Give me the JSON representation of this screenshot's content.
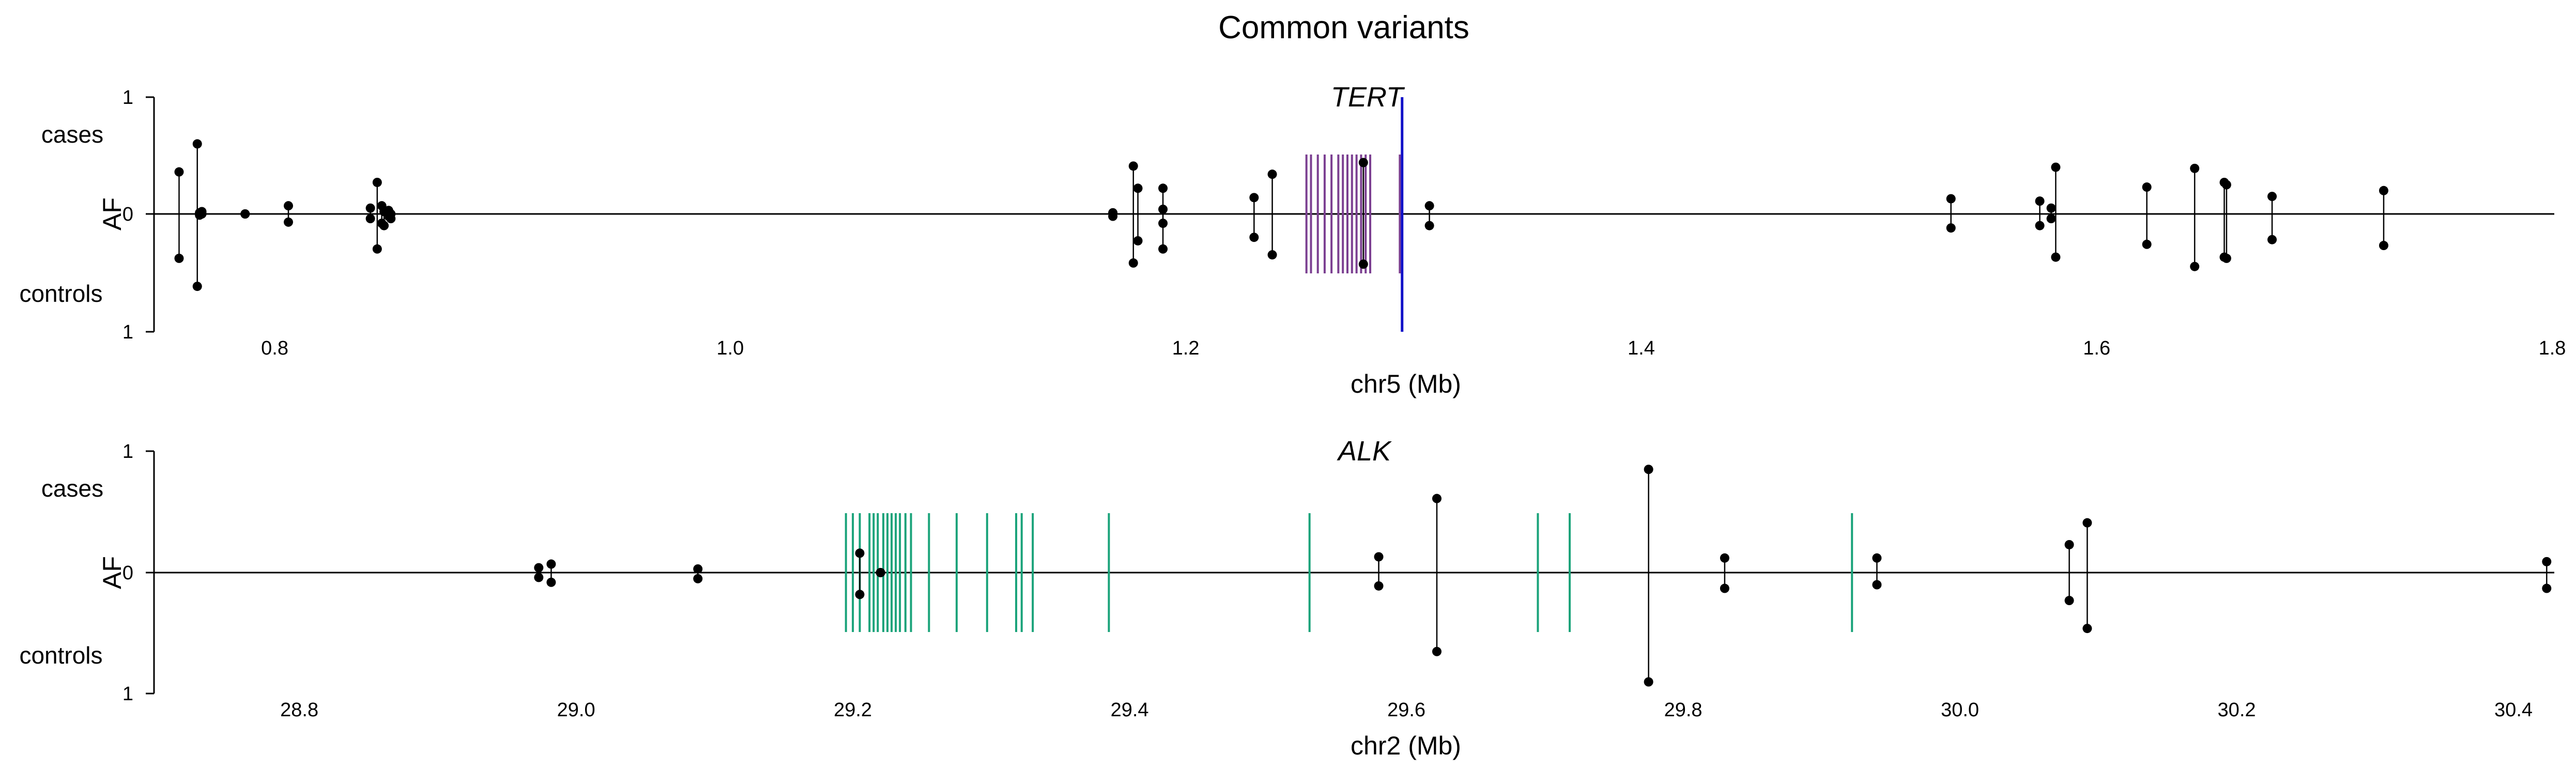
{
  "title": "Common variants",
  "chart_data": [
    {
      "type": "scatter",
      "gene": "TERT",
      "xlabel": "chr5 (Mb)",
      "ylabel": "AF",
      "upper_label": "cases",
      "lower_label": "controls",
      "y_ticks": [
        "1",
        "0",
        "1"
      ],
      "xlim": [
        0.747,
        1.8
      ],
      "ylim": [
        -1,
        1
      ],
      "x_ticks": [
        0.8,
        1.0,
        1.2,
        1.4,
        1.6,
        1.8
      ],
      "x_tick_labels": [
        "0.8",
        "1.0",
        "1.2",
        "1.4",
        "1.6",
        "1.8"
      ],
      "gene_color": "#7b3f91",
      "highlight_color": "#1010c8",
      "highlight_x": 1.295,
      "gene_exons": [
        1.253,
        1.255,
        1.258,
        1.261,
        1.264,
        1.267,
        1.269,
        1.271,
        1.273,
        1.275,
        1.277,
        1.279,
        1.281,
        1.294
      ],
      "variants": [
        {
          "x": 0.758,
          "cases": 0.36,
          "controls": 0.38
        },
        {
          "x": 0.766,
          "cases": 0.6,
          "controls": 0.62
        },
        {
          "x": 0.768,
          "cases": 0.02,
          "controls": 0.0
        },
        {
          "x": 0.767,
          "cases": 0.01,
          "controls": 0.01
        },
        {
          "x": 0.787,
          "cases": 0.0,
          "controls": 0.0
        },
        {
          "x": 0.806,
          "cases": 0.07,
          "controls": 0.07
        },
        {
          "x": 0.842,
          "cases": 0.05,
          "controls": 0.04
        },
        {
          "x": 0.845,
          "cases": 0.27,
          "controls": 0.3
        },
        {
          "x": 0.847,
          "cases": 0.07,
          "controls": 0.08
        },
        {
          "x": 0.848,
          "cases": 0.02,
          "controls": 0.1
        },
        {
          "x": 0.85,
          "cases": 0.03,
          "controls": 0.02
        },
        {
          "x": 0.851,
          "cases": 0.0,
          "controls": 0.04
        },
        {
          "x": 1.168,
          "cases": 0.01,
          "controls": 0.02
        },
        {
          "x": 1.177,
          "cases": 0.41,
          "controls": 0.42
        },
        {
          "x": 1.179,
          "cases": 0.22,
          "controls": 0.23
        },
        {
          "x": 1.19,
          "cases": 0.22,
          "controls": 0.3
        },
        {
          "x": 1.19,
          "cases": 0.04,
          "controls": 0.08
        },
        {
          "x": 1.23,
          "cases": 0.14,
          "controls": 0.2
        },
        {
          "x": 1.238,
          "cases": 0.34,
          "controls": 0.35
        },
        {
          "x": 1.278,
          "cases": 0.44,
          "controls": 0.43
        },
        {
          "x": 1.307,
          "cases": 0.07,
          "controls": 0.1
        },
        {
          "x": 1.536,
          "cases": 0.13,
          "controls": 0.12
        },
        {
          "x": 1.575,
          "cases": 0.11,
          "controls": 0.1
        },
        {
          "x": 1.58,
          "cases": 0.05,
          "controls": 0.04
        },
        {
          "x": 1.582,
          "cases": 0.4,
          "controls": 0.37
        },
        {
          "x": 1.622,
          "cases": 0.23,
          "controls": 0.26
        },
        {
          "x": 1.643,
          "cases": 0.39,
          "controls": 0.45
        },
        {
          "x": 1.656,
          "cases": 0.27,
          "controls": 0.37
        },
        {
          "x": 1.657,
          "cases": 0.25,
          "controls": 0.38
        },
        {
          "x": 1.677,
          "cases": 0.15,
          "controls": 0.22
        },
        {
          "x": 1.726,
          "cases": 0.2,
          "controls": 0.27
        }
      ]
    },
    {
      "type": "scatter",
      "gene": "ALK",
      "xlabel": "chr2 (Mb)",
      "ylabel": "AF",
      "upper_label": "cases",
      "lower_label": "controls",
      "y_ticks": [
        "1",
        "0",
        "1"
      ],
      "xlim": [
        28.695,
        30.428
      ],
      "ylim": [
        -1,
        1
      ],
      "x_ticks": [
        28.8,
        29.0,
        29.2,
        29.4,
        29.6,
        29.8,
        30.0,
        30.2,
        30.4
      ],
      "x_tick_labels": [
        "28.8",
        "29.0",
        "29.2",
        "29.4",
        "29.6",
        "29.8",
        "30.0",
        "30.2",
        "30.4"
      ],
      "gene_color": "#1aa37a",
      "gene_exons": [
        29.195,
        29.2,
        29.205,
        29.212,
        29.215,
        29.218,
        29.222,
        29.225,
        29.228,
        29.231,
        29.234,
        29.238,
        29.242,
        29.255,
        29.275,
        29.297,
        29.318,
        29.322,
        29.33,
        29.385,
        29.53,
        29.695,
        29.718,
        29.922
      ],
      "variants": [
        {
          "x": 28.973,
          "cases": 0.04,
          "controls": 0.04
        },
        {
          "x": 28.982,
          "cases": 0.07,
          "controls": 0.08
        },
        {
          "x": 29.088,
          "cases": 0.03,
          "controls": 0.05
        },
        {
          "x": 29.205,
          "cases": 0.16,
          "controls": 0.18
        },
        {
          "x": 29.22,
          "cases": 0.0,
          "controls": 0.0
        },
        {
          "x": 29.58,
          "cases": 0.13,
          "controls": 0.11
        },
        {
          "x": 29.622,
          "cases": 0.61,
          "controls": 0.65
        },
        {
          "x": 29.775,
          "cases": 0.85,
          "controls": 0.9
        },
        {
          "x": 29.83,
          "cases": 0.12,
          "controls": 0.13
        },
        {
          "x": 29.94,
          "cases": 0.12,
          "controls": 0.1
        },
        {
          "x": 30.079,
          "cases": 0.23,
          "controls": 0.23
        },
        {
          "x": 30.092,
          "cases": 0.41,
          "controls": 0.46
        },
        {
          "x": 30.424,
          "cases": 0.09,
          "controls": 0.13
        }
      ]
    }
  ]
}
